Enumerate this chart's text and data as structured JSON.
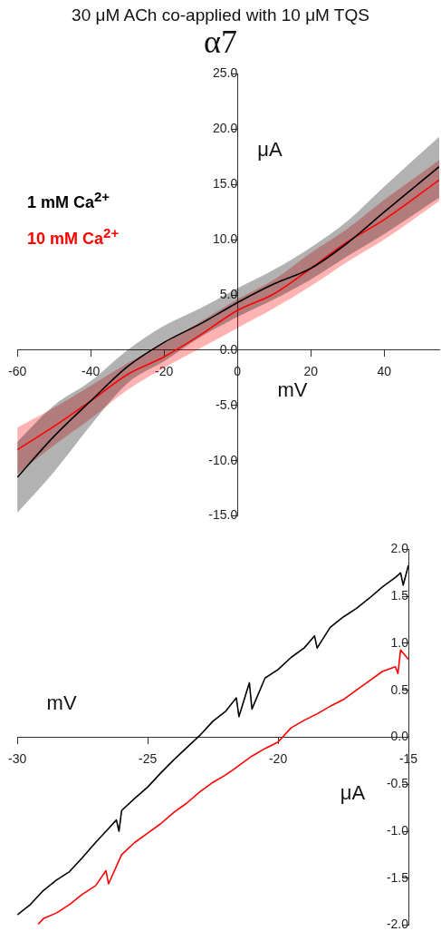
{
  "chart_data": [
    {
      "type": "line",
      "title": "30 μM ACh co-applied with 10 μM TQS",
      "subtitle": "α7",
      "xlabel": "mV",
      "ylabel": "μA",
      "legend": "left",
      "marker": "none",
      "line_style": "solid",
      "grid": false,
      "xlim": [
        -60,
        55
      ],
      "xticks": [
        -60,
        -40,
        -20,
        0,
        20,
        40
      ],
      "ylim": [
        -15,
        25
      ],
      "yticks": [
        {
          "value": -15,
          "label": "-15.0"
        },
        {
          "value": -10,
          "label": "-10.0"
        },
        {
          "value": -5,
          "label": "-5.0"
        },
        {
          "value": 0,
          "label": "0.0"
        },
        {
          "value": 5,
          "label": "5.0"
        },
        {
          "value": 10,
          "label": "10.0"
        },
        {
          "value": 15,
          "label": "15.0"
        },
        {
          "value": 20,
          "label": "20.0"
        },
        {
          "value": 25,
          "label": "25.0"
        }
      ],
      "x": [
        -60,
        -50,
        -40,
        -30,
        -20,
        -10,
        0,
        10,
        20,
        30,
        40,
        55
      ],
      "series": [
        {
          "name": "1 mM Ca$^{2+}$",
          "color": "#000000",
          "values": [
            -11.5,
            -7.8,
            -4.6,
            -1.5,
            0.7,
            2.4,
            4.3,
            6.0,
            7.4,
            9.7,
            12.5,
            16.6
          ],
          "lower": [
            -14.7,
            -11,
            -6.8,
            -3,
            -1,
            1.2,
            3,
            4.6,
            6.4,
            8.5,
            10.5,
            13.8
          ],
          "upper": [
            -8.3,
            -5,
            -2.8,
            0,
            2.2,
            3.8,
            5.6,
            7.3,
            9.3,
            11.7,
            14.8,
            19.3
          ]
        },
        {
          "name": "10 mM Ca$^{2+}$",
          "color": "#ff0000",
          "values": [
            -9.0,
            -6.9,
            -4.6,
            -2.2,
            -0.6,
            1.4,
            3.6,
            5.1,
            7.4,
            9.8,
            11.8,
            15.4
          ],
          "lower": [
            -11.2,
            -8.6,
            -6.2,
            -3.6,
            -1.6,
            0.2,
            2.0,
            3.8,
            5.8,
            8.0,
            10.0,
            13.5
          ],
          "upper": [
            -7,
            -5.2,
            -3.2,
            -1.2,
            0.6,
            2.6,
            4.6,
            6.4,
            8.8,
            11.0,
            13.6,
            17.2
          ]
        }
      ]
    },
    {
      "type": "line",
      "xlabel": "mV",
      "ylabel": "μA",
      "marker": "none",
      "line_style": "solid",
      "grid": false,
      "xlim": [
        -30,
        -15
      ],
      "xticks": [
        -30,
        -25,
        -20,
        -15
      ],
      "ylim": [
        -2,
        2
      ],
      "yticks": [
        {
          "value": -2,
          "label": "-2.0"
        },
        {
          "value": -1.5,
          "label": "-1.5"
        },
        {
          "value": -1,
          "label": "-1.0"
        },
        {
          "value": -0.5,
          "label": "-0.5"
        },
        {
          "value": 0,
          "label": "0.0"
        },
        {
          "value": 0.5,
          "label": "0.5"
        },
        {
          "value": 1,
          "label": "1.0"
        },
        {
          "value": 1.5,
          "label": "1.5"
        },
        {
          "value": 2,
          "label": "2.0"
        }
      ],
      "series": [
        {
          "color": "#000000",
          "x": [
            -30,
            -29.5,
            -29,
            -28.5,
            -28,
            -27.5,
            -27,
            -26.5,
            -26.2,
            -26.1,
            -26,
            -25.5,
            -25,
            -24.5,
            -24,
            -23.5,
            -23,
            -22.5,
            -22,
            -21.6,
            -21.5,
            -21.1,
            -21,
            -20.5,
            -20,
            -19.5,
            -19,
            -18.6,
            -18.5,
            -18,
            -17.5,
            -17,
            -16.5,
            -16,
            -15.5,
            -15.3,
            -15.2,
            -15
          ],
          "values": [
            -1.89,
            -1.78,
            -1.63,
            -1.52,
            -1.43,
            -1.28,
            -1.12,
            -0.97,
            -0.88,
            -1.0,
            -0.78,
            -0.65,
            -0.53,
            -0.38,
            -0.24,
            -0.11,
            0.02,
            0.17,
            0.28,
            0.42,
            0.22,
            0.58,
            0.3,
            0.63,
            0.72,
            0.85,
            0.95,
            1.08,
            0.95,
            1.17,
            1.28,
            1.37,
            1.48,
            1.6,
            1.7,
            1.75,
            1.62,
            1.83
          ]
        },
        {
          "color": "#ff0000",
          "x": [
            -29.2,
            -29,
            -28.5,
            -28,
            -27.5,
            -27,
            -26.6,
            -26.5,
            -26,
            -25.5,
            -25,
            -24.5,
            -24,
            -23.5,
            -23,
            -22.5,
            -22,
            -21.5,
            -21,
            -20.5,
            -20,
            -19.5,
            -19,
            -18.5,
            -18,
            -17.5,
            -17,
            -16.5,
            -16,
            -15.5,
            -15.4,
            -15.3,
            -15
          ],
          "values": [
            -1.99,
            -1.93,
            -1.87,
            -1.78,
            -1.67,
            -1.58,
            -1.42,
            -1.56,
            -1.25,
            -1.12,
            -1.02,
            -0.92,
            -0.8,
            -0.7,
            -0.58,
            -0.48,
            -0.4,
            -0.3,
            -0.2,
            -0.12,
            -0.05,
            0.1,
            0.18,
            0.25,
            0.33,
            0.4,
            0.5,
            0.6,
            0.7,
            0.75,
            0.68,
            0.93,
            0.83
          ]
        }
      ]
    }
  ]
}
